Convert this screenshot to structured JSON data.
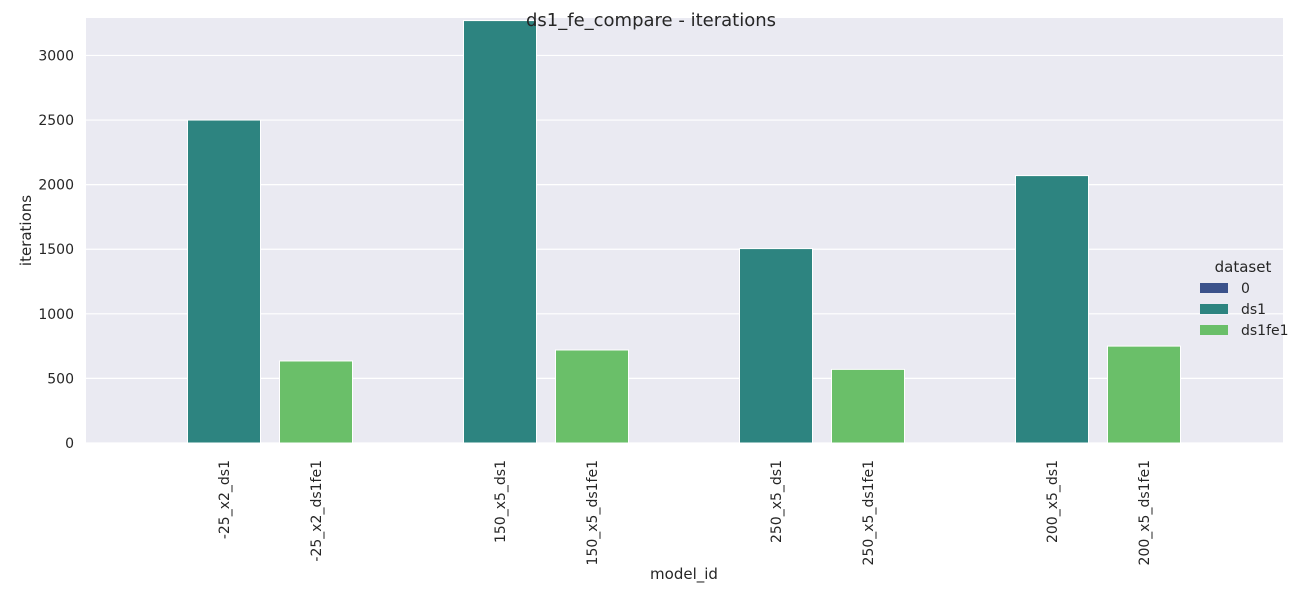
{
  "chart_data": {
    "type": "bar",
    "title": "ds1_fe_compare - iterations",
    "xlabel": "model_id",
    "ylabel": "iterations",
    "ylim": [
      0,
      3290
    ],
    "yticks": [
      0,
      500,
      1000,
      1500,
      2000,
      2500,
      3000
    ],
    "grid": true,
    "legend_placement": "center-right",
    "legend_title": "dataset",
    "groups": [
      {
        "bars": [
          {
            "label": "-25_x2_ds1",
            "series": "ds1",
            "value": 2500
          },
          {
            "label": "-25_x2_ds1fe1",
            "series": "ds1fe1",
            "value": 635
          }
        ]
      },
      {
        "bars": [
          {
            "label": "150_x5_ds1",
            "series": "ds1",
            "value": 3270
          },
          {
            "label": "150_x5_ds1fe1",
            "series": "ds1fe1",
            "value": 720
          }
        ]
      },
      {
        "bars": [
          {
            "label": "250_x5_ds1",
            "series": "ds1",
            "value": 1505
          },
          {
            "label": "250_x5_ds1fe1",
            "series": "ds1fe1",
            "value": 570
          }
        ]
      },
      {
        "bars": [
          {
            "label": "200_x5_ds1",
            "series": "ds1",
            "value": 2070
          },
          {
            "label": "200_x5_ds1fe1",
            "series": "ds1fe1",
            "value": 750
          }
        ]
      }
    ],
    "series": [
      {
        "name": "0",
        "color": "#3b528b"
      },
      {
        "name": "ds1",
        "color": "#2d8480"
      },
      {
        "name": "ds1fe1",
        "color": "#6abf69"
      }
    ]
  }
}
